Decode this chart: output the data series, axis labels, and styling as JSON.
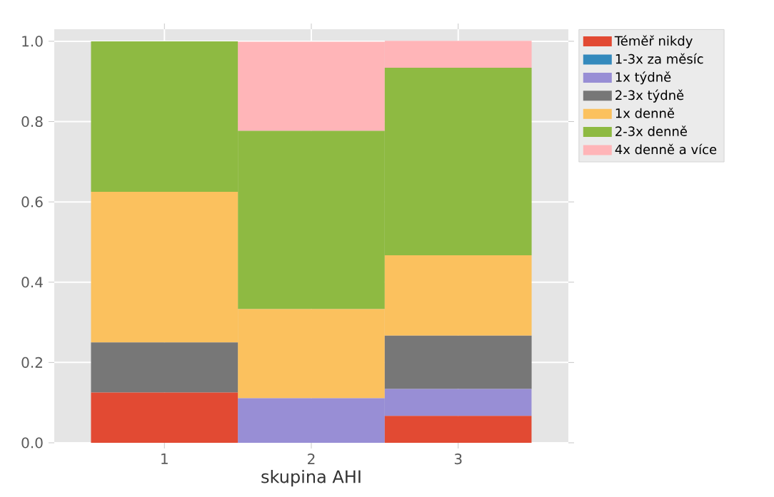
{
  "chart_data": {
    "type": "bar",
    "stacked": true,
    "xlabel": "skupina AHI",
    "categories": [
      "1",
      "2",
      "3"
    ],
    "series": [
      {
        "name": "Téměř nikdy",
        "color": "#e24a33",
        "values": [
          0.125,
          0,
          0.067
        ]
      },
      {
        "name": "1-3x za měsíc",
        "color": "#348abd",
        "values": [
          0,
          0,
          0
        ]
      },
      {
        "name": "1x týdně",
        "color": "#988ed5",
        "values": [
          0,
          0.111,
          0.067
        ]
      },
      {
        "name": "2-3x týdně",
        "color": "#777777",
        "values": [
          0.125,
          0,
          0.133
        ]
      },
      {
        "name": "1x denně",
        "color": "#fbc15e",
        "values": [
          0.375,
          0.222,
          0.2
        ]
      },
      {
        "name": "2-3x denně",
        "color": "#8eba42",
        "values": [
          0.375,
          0.444,
          0.467
        ]
      },
      {
        "name": "4x denně a více",
        "color": "#ffb5b8",
        "values": [
          0,
          0.222,
          0.067
        ]
      }
    ],
    "ylim": [
      0,
      1.03
    ],
    "yticks": [
      {
        "value": 0,
        "label": "0.0"
      },
      {
        "value": 0.2,
        "label": "0.2"
      },
      {
        "value": 0.4,
        "label": "0.4"
      },
      {
        "value": 0.6,
        "label": "0.6"
      },
      {
        "value": 0.8,
        "label": "0.8"
      },
      {
        "value": 1.0,
        "label": "1.0"
      }
    ],
    "grid": true,
    "legend": "top right"
  }
}
